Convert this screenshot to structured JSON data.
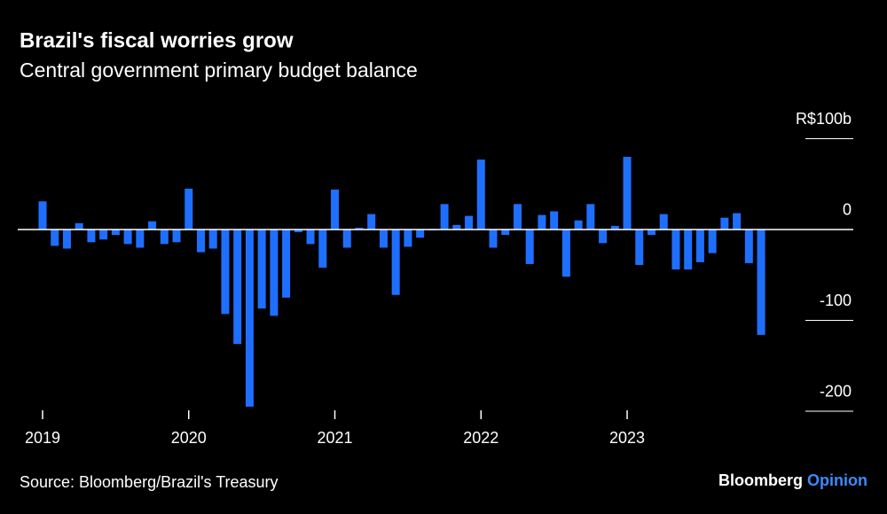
{
  "chart_data": {
    "type": "bar",
    "title": "Brazil's fiscal worries grow",
    "subtitle": "Central government primary budget balance",
    "source": "Source: Bloomberg/Brazil's Treasury",
    "brand": [
      "Bloomberg",
      "Opinion"
    ],
    "categories": [
      "2019",
      null,
      null,
      null,
      null,
      null,
      null,
      null,
      null,
      null,
      null,
      null,
      "2020",
      null,
      null,
      null,
      null,
      null,
      null,
      null,
      null,
      null,
      null,
      null,
      "2021",
      null,
      null,
      null,
      null,
      null,
      null,
      null,
      null,
      null,
      null,
      null,
      "2022",
      null,
      null,
      null,
      null,
      null,
      null,
      null,
      null,
      null,
      null,
      null,
      "2023",
      null,
      null,
      null,
      null,
      null,
      null,
      null,
      null,
      null,
      null,
      null
    ],
    "values": [
      31,
      -18,
      -21,
      7,
      -14,
      -11,
      -6,
      -16,
      -20,
      9,
      -16,
      -14,
      45,
      -25,
      -21,
      -93,
      -126,
      -195,
      -87,
      -95,
      -75,
      -3,
      -16,
      -42,
      44,
      -20,
      2,
      17,
      -20,
      -72,
      -19,
      -9,
      -1,
      28,
      5,
      15,
      77,
      -20,
      -6,
      28,
      -38,
      16,
      20,
      -52,
      10,
      28,
      -15,
      4,
      80,
      -39,
      -6,
      17,
      -44,
      -44,
      -36,
      -26,
      13,
      18,
      -37,
      -116
    ],
    "color": "#1f6fff",
    "ylim": [
      -205,
      115
    ],
    "yticks": [
      {
        "value": 100,
        "label": "R$100b"
      },
      0,
      -100,
      -200
    ],
    "y_axis_side": "right"
  }
}
